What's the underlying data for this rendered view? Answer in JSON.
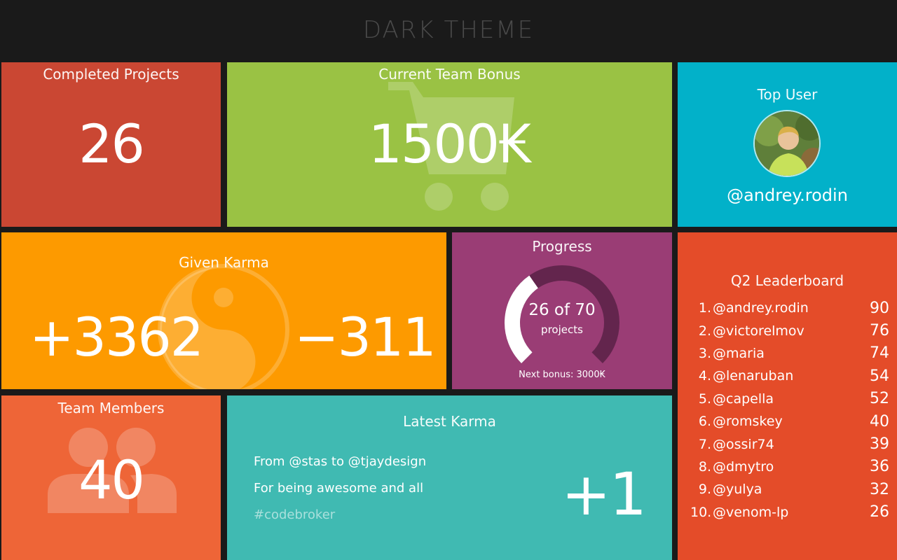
{
  "header": {
    "title": "DARK THEME"
  },
  "completed": {
    "title": "Completed Projects",
    "value": "26"
  },
  "bonus": {
    "title": "Current Team Bonus",
    "value": "1500₭"
  },
  "top_user": {
    "title": "Top User",
    "handle": "@andrey.rodin"
  },
  "karma": {
    "title": "Given Karma",
    "positive": "+3362",
    "negative": "−311"
  },
  "progress": {
    "title": "Progress",
    "label": "26 of 70",
    "sublabel": "projects",
    "note": "Next bonus: 3000₭",
    "done": 26,
    "total": 70
  },
  "leaderboard": {
    "title": "Q2 Leaderboard",
    "rows": [
      {
        "rank": "1.",
        "name": "@andrey.rodin",
        "score": "90"
      },
      {
        "rank": "2.",
        "name": "@victorelmov",
        "score": "76"
      },
      {
        "rank": "3.",
        "name": "@maria",
        "score": "74"
      },
      {
        "rank": "4.",
        "name": "@lenaruban",
        "score": "54"
      },
      {
        "rank": "5.",
        "name": "@capella",
        "score": "52"
      },
      {
        "rank": "6.",
        "name": "@romskey",
        "score": "40"
      },
      {
        "rank": "7.",
        "name": "@ossir74",
        "score": "39"
      },
      {
        "rank": "8.",
        "name": "@dmytro",
        "score": "36"
      },
      {
        "rank": "9.",
        "name": "@yulya",
        "score": "32"
      },
      {
        "rank": "10.",
        "name": "@venom-lp",
        "score": "26"
      }
    ]
  },
  "members": {
    "title": "Team Members",
    "value": "40"
  },
  "latest": {
    "title": "Latest Karma",
    "from_line": "From @stas to @tjaydesign",
    "reason": "For being awesome and all",
    "tag": "#codebroker",
    "value": "+1"
  },
  "icons": {
    "bonus_bg": "shopping-cart-icon",
    "karma_bg": "yin-yang-icon",
    "members_bg": "people-icon"
  },
  "colors": {
    "completed": "#ca4733",
    "bonus": "#9ac244",
    "top_user": "#02b1c9",
    "karma": "#fd9a00",
    "progress": "#9a3d75",
    "leaderboard": "#e44c29",
    "members": "#ee6537",
    "latest": "#40bab2"
  }
}
